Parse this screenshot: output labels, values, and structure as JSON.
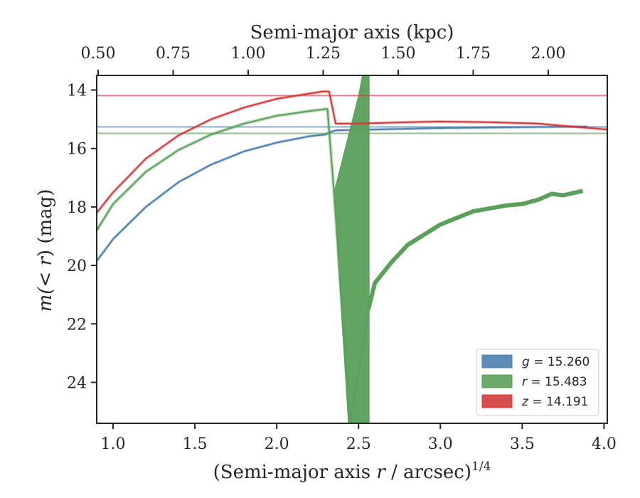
{
  "chart_data": {
    "type": "line",
    "xlabel": {
      "prefix": "(Semi-major axis ",
      "var": "r",
      "suffix": " / arcsec)",
      "exponent": "1/4"
    },
    "ylabel": {
      "prefix": "m(",
      "var": "< r",
      "suffix": ") (mag)"
    },
    "top_xlabel": "Semi-major axis (kpc)",
    "xlim": [
      0.9,
      4.02
    ],
    "ylim": [
      25.4,
      13.5
    ],
    "y_inverted": true,
    "xticks": [
      1.0,
      1.5,
      2.0,
      2.5,
      3.0,
      3.5,
      4.0
    ],
    "xtick_labels": [
      "1.0",
      "1.5",
      "2.0",
      "2.5",
      "3.0",
      "3.5",
      "4.0"
    ],
    "yticks": [
      14,
      16,
      18,
      20,
      22,
      24
    ],
    "ytick_labels": [
      "14",
      "16",
      "18",
      "20",
      "22",
      "24"
    ],
    "top_axis": {
      "ticks": [
        0.5,
        0.75,
        1.0,
        1.25,
        1.5,
        1.75,
        2.0
      ],
      "labels": [
        "0.50",
        "0.75",
        "1.00",
        "1.25",
        "1.50",
        "1.75",
        "2.00"
      ],
      "mapping_note": "upper axis semi-major axis in kpc"
    },
    "legend_position": "lower-right",
    "series": [
      {
        "name": "g = 15.260",
        "band": "g",
        "value": "15.260",
        "color": "#4c7fb0",
        "asymptote": 15.26,
        "x": [
          0.9,
          1.0,
          1.2,
          1.4,
          1.6,
          1.8,
          2.0,
          2.2,
          2.3,
          2.32,
          2.36,
          2.5,
          3.0,
          3.5,
          3.9
        ],
        "y": [
          19.85,
          19.1,
          18.0,
          17.15,
          16.55,
          16.1,
          15.8,
          15.58,
          15.52,
          15.45,
          15.38,
          15.36,
          15.3,
          15.27,
          15.25
        ]
      },
      {
        "name": "r = 15.483",
        "band": "r",
        "value": "15.483",
        "color": "#5aa05a",
        "asymptote": 15.483,
        "x": [
          0.9,
          1.0,
          1.2,
          1.4,
          1.6,
          1.8,
          2.0,
          2.2,
          2.3,
          2.31,
          2.35,
          2.45,
          2.56,
          2.6,
          2.7,
          2.8,
          3.0,
          3.2,
          3.4,
          3.5,
          3.6,
          3.68,
          3.75,
          3.87
        ],
        "y": [
          18.8,
          17.9,
          16.8,
          16.05,
          15.52,
          15.15,
          14.88,
          14.72,
          14.65,
          14.65,
          17.5,
          25.4,
          21.5,
          20.6,
          19.9,
          19.3,
          18.6,
          18.15,
          17.95,
          17.9,
          17.75,
          17.55,
          17.6,
          17.45
        ]
      },
      {
        "name": "z = 14.191",
        "band": "z",
        "value": "14.191",
        "color": "#d43a3a",
        "asymptote": 14.191,
        "x": [
          0.9,
          1.0,
          1.2,
          1.4,
          1.6,
          1.8,
          2.0,
          2.2,
          2.28,
          2.32,
          2.36,
          2.5,
          2.8,
          3.0,
          3.3,
          3.6,
          3.8,
          4.02
        ],
        "y": [
          18.2,
          17.5,
          16.35,
          15.55,
          15.0,
          14.6,
          14.3,
          14.12,
          14.05,
          14.05,
          15.15,
          15.15,
          15.1,
          15.08,
          15.1,
          15.15,
          15.25,
          15.35
        ]
      }
    ]
  }
}
